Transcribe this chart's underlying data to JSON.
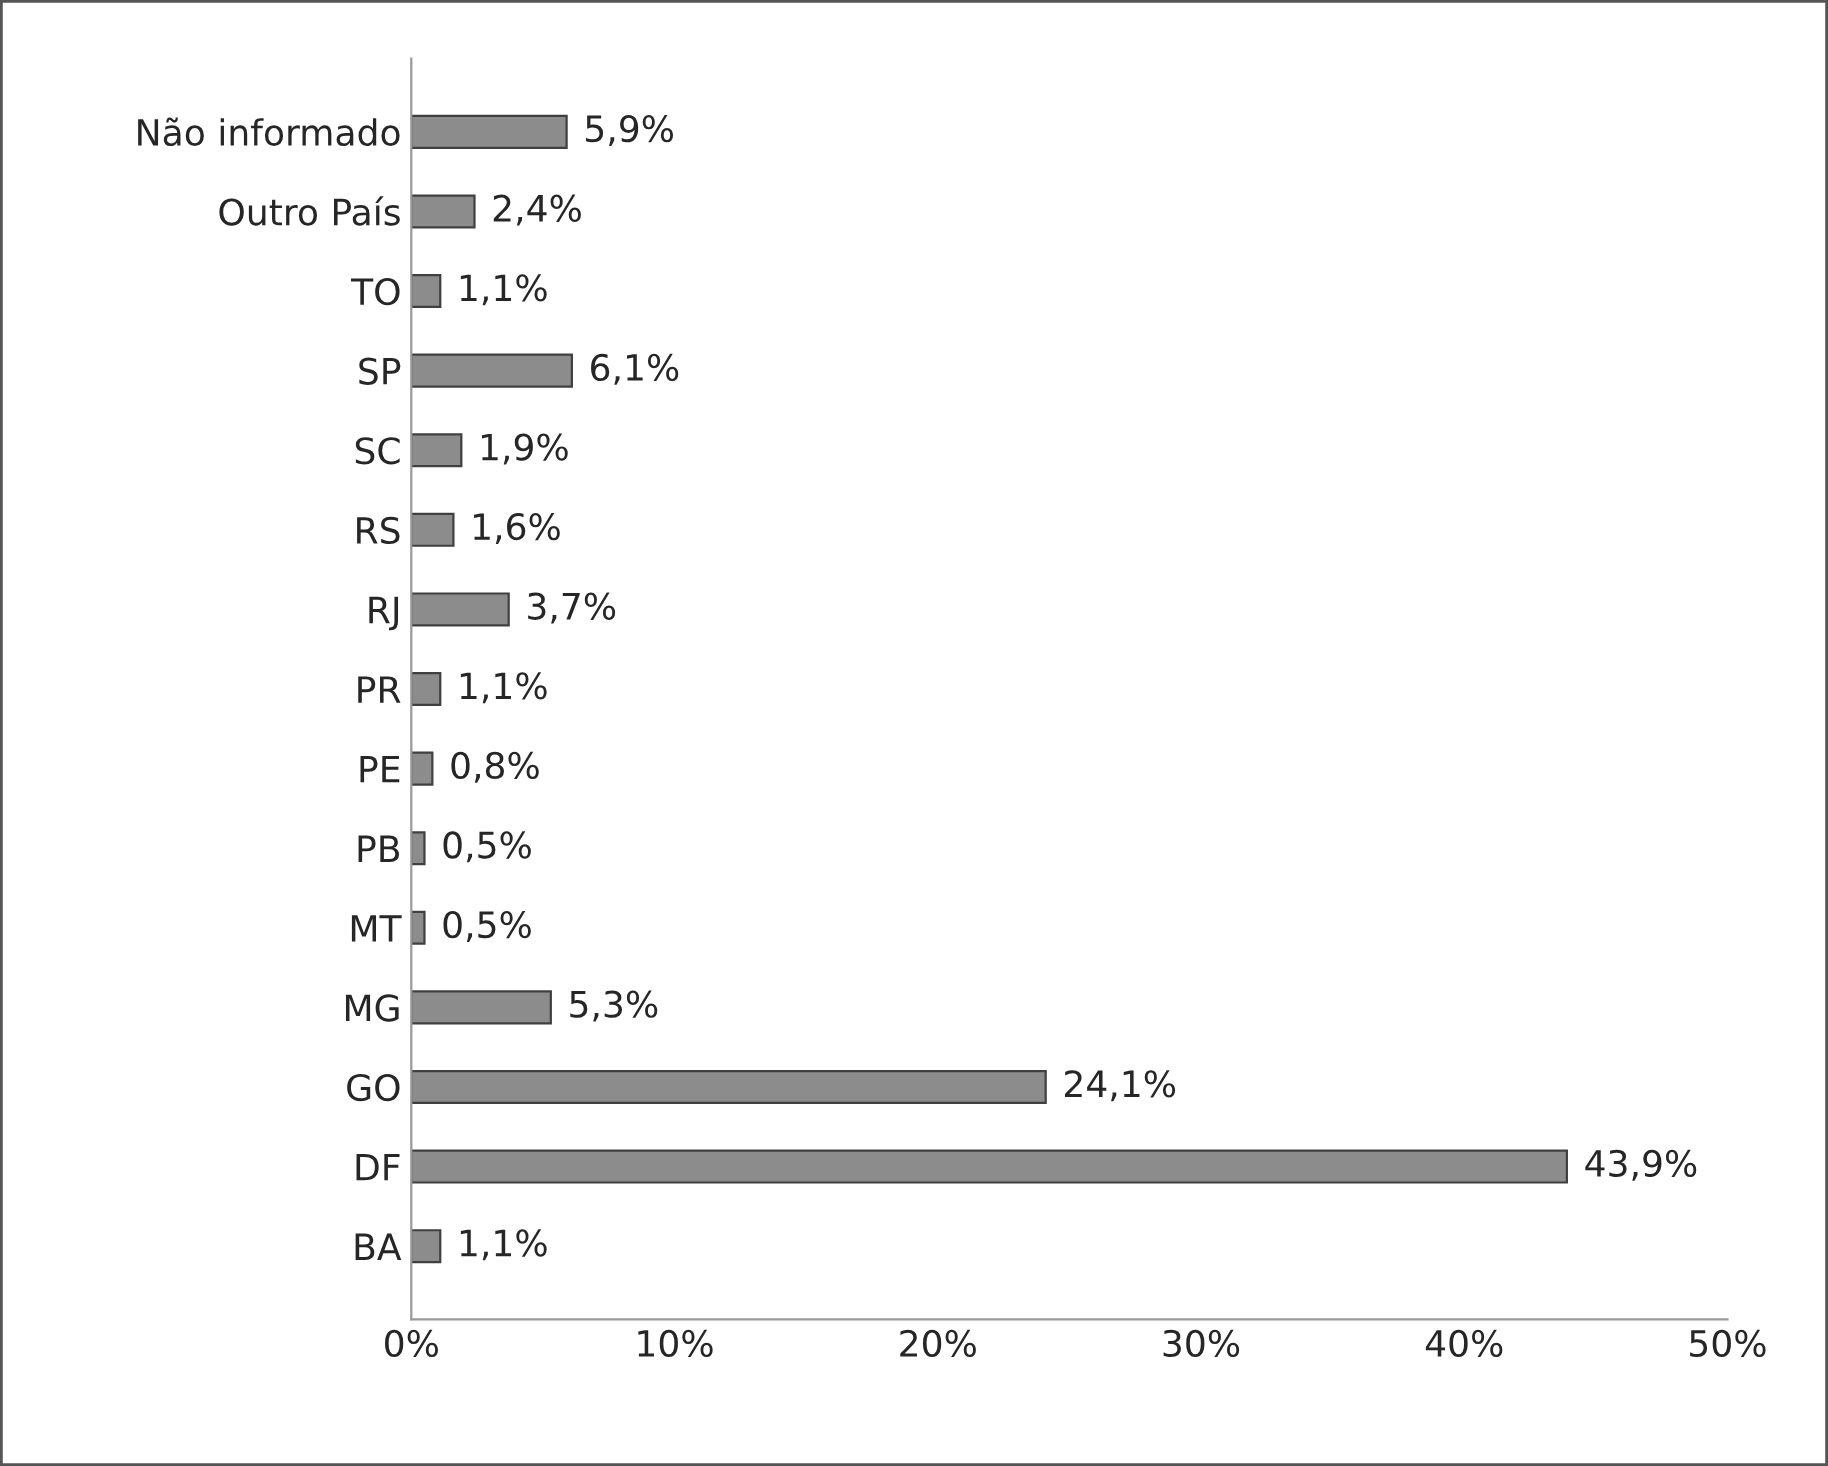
{
  "chart_data": {
    "type": "bar",
    "orientation": "horizontal",
    "categories": [
      "Não informado",
      "Outro País",
      "TO",
      "SP",
      "SC",
      "RS",
      "RJ",
      "PR",
      "PE",
      "PB",
      "MT",
      "MG",
      "GO",
      "DF",
      "BA"
    ],
    "values": [
      5.9,
      2.4,
      1.1,
      6.1,
      1.9,
      1.6,
      3.7,
      1.1,
      0.8,
      0.5,
      0.5,
      5.3,
      24.1,
      43.9,
      1.1
    ],
    "value_labels": [
      "5,9%",
      "2,4%",
      "1,1%",
      "6,1%",
      "1,9%",
      "1,6%",
      "3,7%",
      "1,1%",
      "0,8%",
      "0,5%",
      "0,5%",
      "5,3%",
      "24,1%",
      "43,9%",
      "1,1%"
    ],
    "color": "#8c8c8c",
    "xlim": [
      0,
      50
    ],
    "xticks": [
      {
        "value": 0,
        "label": "0%"
      },
      {
        "value": 10,
        "label": "10%"
      },
      {
        "value": 20,
        "label": "20%"
      },
      {
        "value": 30,
        "label": "30%"
      },
      {
        "value": 40,
        "label": "40%"
      },
      {
        "value": 50,
        "label": "50%"
      }
    ],
    "grid": false,
    "legend": false
  }
}
